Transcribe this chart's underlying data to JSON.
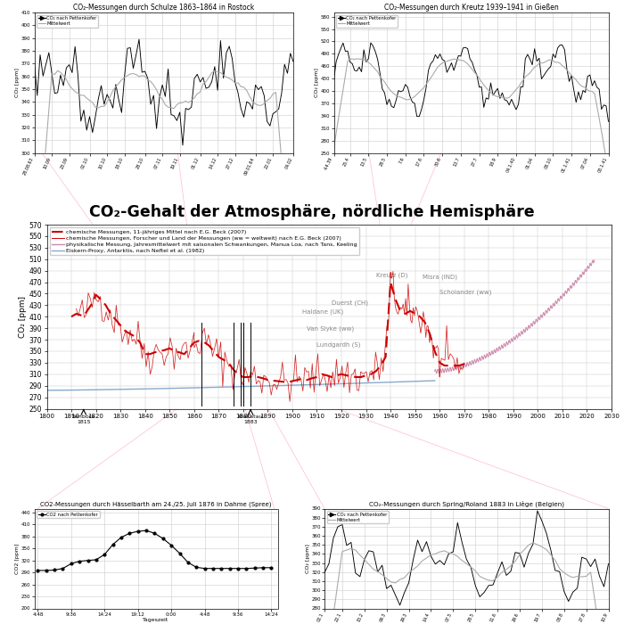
{
  "title_main": "CO₂-Gehalt der Atmosphäre, nördliche Hemisphäre",
  "title_schulze": "CO₂-Messungen durch Schulze 1863–1864 in Rostock",
  "title_kreutz": "CO₂-Messungen durch Kreutz 1939–1941 in Gießen",
  "title_haesselbarth": "CO2-Messungen durch Hässelbarth am 24./25. Juli 1876 in Dahme (Spree)",
  "title_spring": "CO₂-Messungen durch Spring/Roland 1883 in Liège (Belgien)",
  "legend_11yr": "chemische Messungen, 11-jähriges Mittel nach E.G. Beck (2007)",
  "legend_chem": "chemische Messungen, Forscher und Land der Messungen (ww = weltweit) nach E.G. Beck (2007)",
  "legend_phys": "physikalische Messung, Jahresmittelwert mit saisonalen Schwankungen, Manua Loa, nach Tans, Keeling",
  "legend_ice": "Eiskern-Proxy, Antarktis, nach Neftel et al. (1982)",
  "ylabel_main": "CO₂ [ppm]",
  "ylabel_schulze": "CO₂ [ppm]",
  "ylabel_kreutz": "CO₂ [ppm]",
  "ylabel_haesselbarth": "CO2 [ppm]",
  "ylabel_spring": "CO₂ [ppm]",
  "xlabel_haesselbarth": "Tageszeit",
  "dates_schulze": [
    "28.08.63",
    "10.09",
    "23.09",
    "02.10",
    "10.10",
    "18.10",
    "28.10",
    "07.11",
    "19.11",
    "01.12",
    "14.12",
    "27.12",
    "09.01.64",
    "22.01",
    "04.02"
  ],
  "dates_kreutz": [
    "4.4.39",
    "25.4",
    "13.5",
    "28.5",
    "7.6",
    "17.6",
    "30.6",
    "13.7",
    "27.7",
    "18.9",
    "04.1.40",
    "01.04",
    "08.10",
    "01.1.41",
    "07.04",
    "03.1.41"
  ],
  "dates_spring": [
    "02.1",
    "22.1",
    "15.2",
    "09.3",
    "29.3",
    "14.4",
    "07.5",
    "28.5",
    "11.6",
    "29.6",
    "19.7",
    "08.8",
    "27.8",
    "10.9"
  ],
  "time_labels_h": [
    "4:48",
    "9:36",
    "14:24",
    "19:12",
    "0:00",
    "4:48",
    "9:36",
    "14:24"
  ],
  "bg_color": "#ffffff",
  "grid_color": "#cccccc",
  "line_color_main": "#000000",
  "line_color_mean": "#aaaaaa",
  "color_beck_mean": "#cc0000",
  "color_mauna": "#cc88aa",
  "color_ice": "#88aacc",
  "ann_color": "#888888"
}
